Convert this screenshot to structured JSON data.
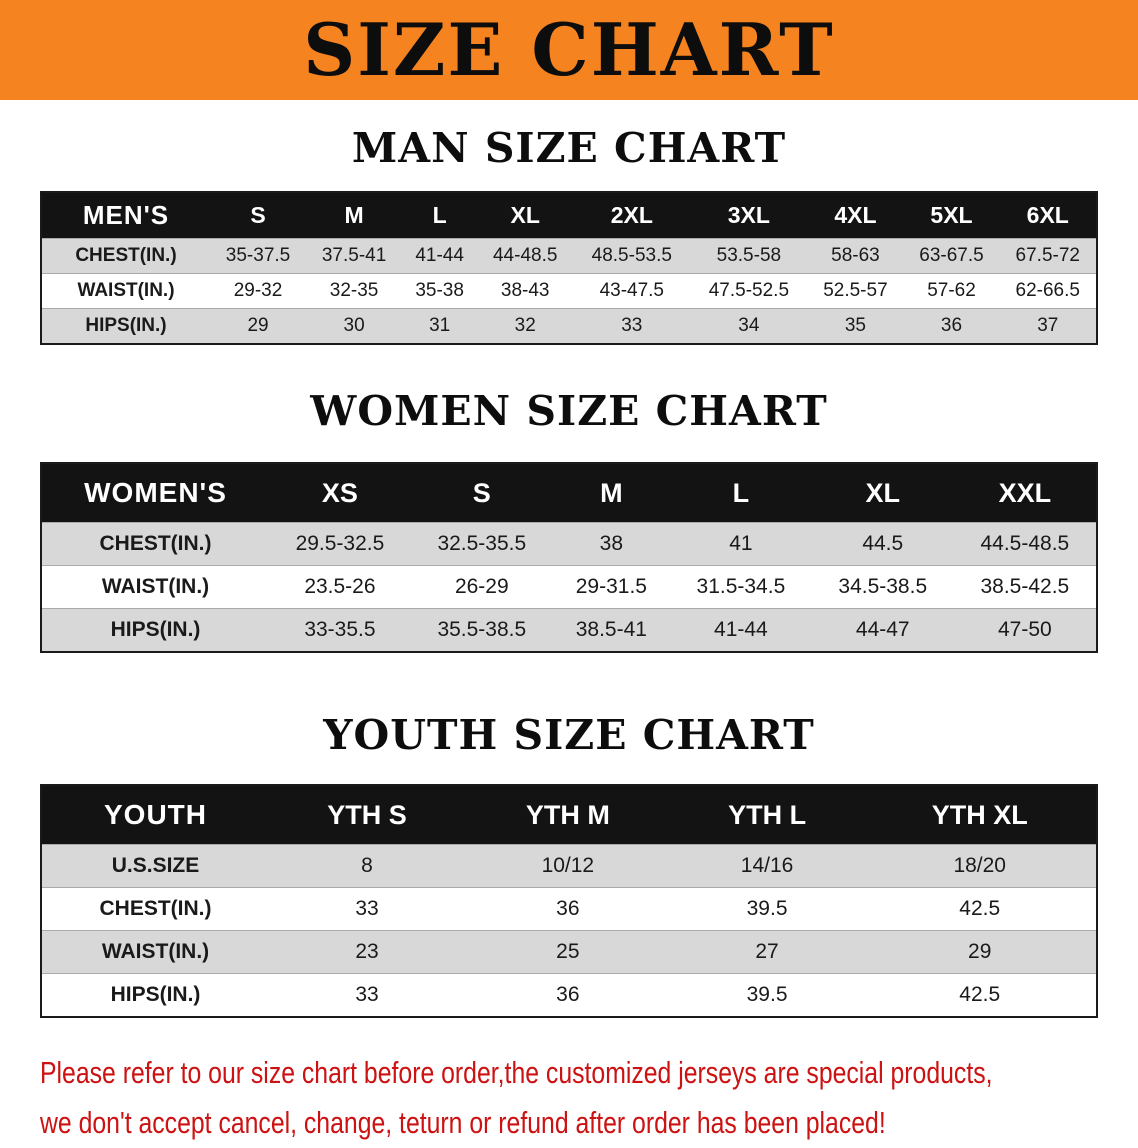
{
  "banner": {
    "title": "SIZE CHART",
    "bg_color": "#F5831F"
  },
  "sections": [
    {
      "id": "men",
      "heading": "MAN SIZE CHART",
      "table": {
        "header": [
          "MEN'S",
          "S",
          "M",
          "L",
          "XL",
          "2XL",
          "3XL",
          "4XL",
          "5XL",
          "6XL"
        ],
        "rows": [
          [
            "CHEST(IN.)",
            "35-37.5",
            "37.5-41",
            "41-44",
            "44-48.5",
            "48.5-53.5",
            "53.5-58",
            "58-63",
            "63-67.5",
            "67.5-72"
          ],
          [
            "WAIST(IN.)",
            "29-32",
            "32-35",
            "35-38",
            "38-43",
            "43-47.5",
            "47.5-52.5",
            "52.5-57",
            "57-62",
            "62-66.5"
          ],
          [
            "HIPS(IN.)",
            "29",
            "30",
            "31",
            "32",
            "33",
            "34",
            "35",
            "36",
            "37"
          ]
        ]
      }
    },
    {
      "id": "women",
      "heading": "WOMEN SIZE CHART",
      "table": {
        "header": [
          "WOMEN'S",
          "XS",
          "S",
          "M",
          "L",
          "XL",
          "XXL"
        ],
        "rows": [
          [
            "CHEST(IN.)",
            "29.5-32.5",
            "32.5-35.5",
            "38",
            "41",
            "44.5",
            "44.5-48.5"
          ],
          [
            "WAIST(IN.)",
            "23.5-26",
            "26-29",
            "29-31.5",
            "31.5-34.5",
            "34.5-38.5",
            "38.5-42.5"
          ],
          [
            "HIPS(IN.)",
            "33-35.5",
            "35.5-38.5",
            "38.5-41",
            "41-44",
            "44-47",
            "47-50"
          ]
        ]
      }
    },
    {
      "id": "youth",
      "heading": "YOUTH SIZE CHART",
      "table": {
        "header": [
          "YOUTH",
          "YTH S",
          "YTH M",
          "YTH L",
          "YTH XL"
        ],
        "rows": [
          [
            "U.S.SIZE",
            "8",
            "10/12",
            "14/16",
            "18/20"
          ],
          [
            "CHEST(IN.)",
            "33",
            "36",
            "39.5",
            "42.5"
          ],
          [
            "WAIST(IN.)",
            "23",
            "25",
            "27",
            "29"
          ],
          [
            "HIPS(IN.)",
            "33",
            "36",
            "39.5",
            "42.5"
          ]
        ]
      }
    }
  ],
  "disclaimer": {
    "color": "#cc1212",
    "line1": "Please refer to our size chart before order,the customized jerseys are special products,",
    "line2": "we don't accept cancel, change, teturn or refund after order has been placed!"
  }
}
